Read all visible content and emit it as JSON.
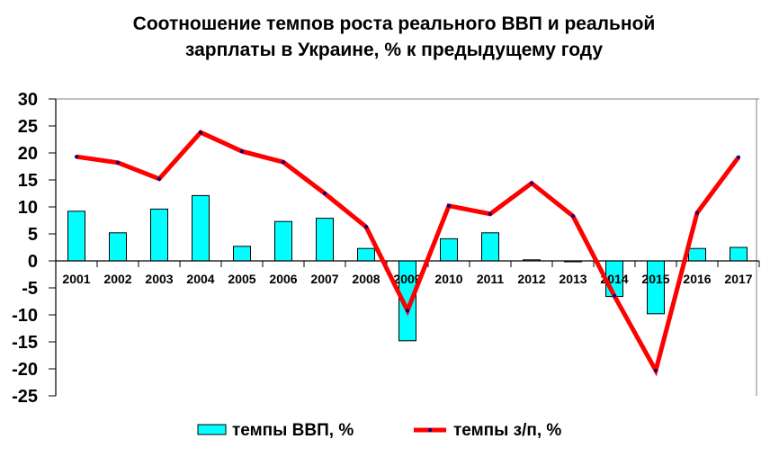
{
  "chart_data": {
    "type": "bar+line",
    "title": "Соотношение темпов роста реального ВВП и реальной зарплаты в Украине, % к предыдущему  году",
    "title_lines": [
      "Соотношение темпов роста реального ВВП и реальной",
      "зарплаты в Украине, % к предыдущему  году"
    ],
    "categories": [
      "2001",
      "2002",
      "2003",
      "2004",
      "2005",
      "2006",
      "2007",
      "2008",
      "2009",
      "2010",
      "2011",
      "2012",
      "2013",
      "2014",
      "2015",
      "2016",
      "2017"
    ],
    "series": [
      {
        "name": "темпы ВВП, %",
        "type": "bar",
        "color": "#00FFFF",
        "values": [
          9.2,
          5.2,
          9.6,
          12.1,
          2.7,
          7.3,
          7.9,
          2.3,
          -14.8,
          4.1,
          5.2,
          0.2,
          0.0,
          -6.6,
          -9.8,
          2.3,
          2.5
        ]
      },
      {
        "name": "темпы з/п, %",
        "type": "line",
        "color": "#FF0000",
        "marker_color": "#000080",
        "values": [
          19.3,
          18.2,
          15.2,
          23.8,
          20.3,
          18.3,
          12.5,
          6.3,
          -9.2,
          10.2,
          8.7,
          14.4,
          8.3,
          -6.5,
          -20.3,
          8.9,
          19.2
        ]
      }
    ],
    "ylim": [
      -25,
      30
    ],
    "yticks": [
      30,
      25,
      20,
      15,
      10,
      5,
      0,
      -5,
      -10,
      -15,
      -20,
      -25
    ],
    "legend": "right",
    "grid": false
  }
}
